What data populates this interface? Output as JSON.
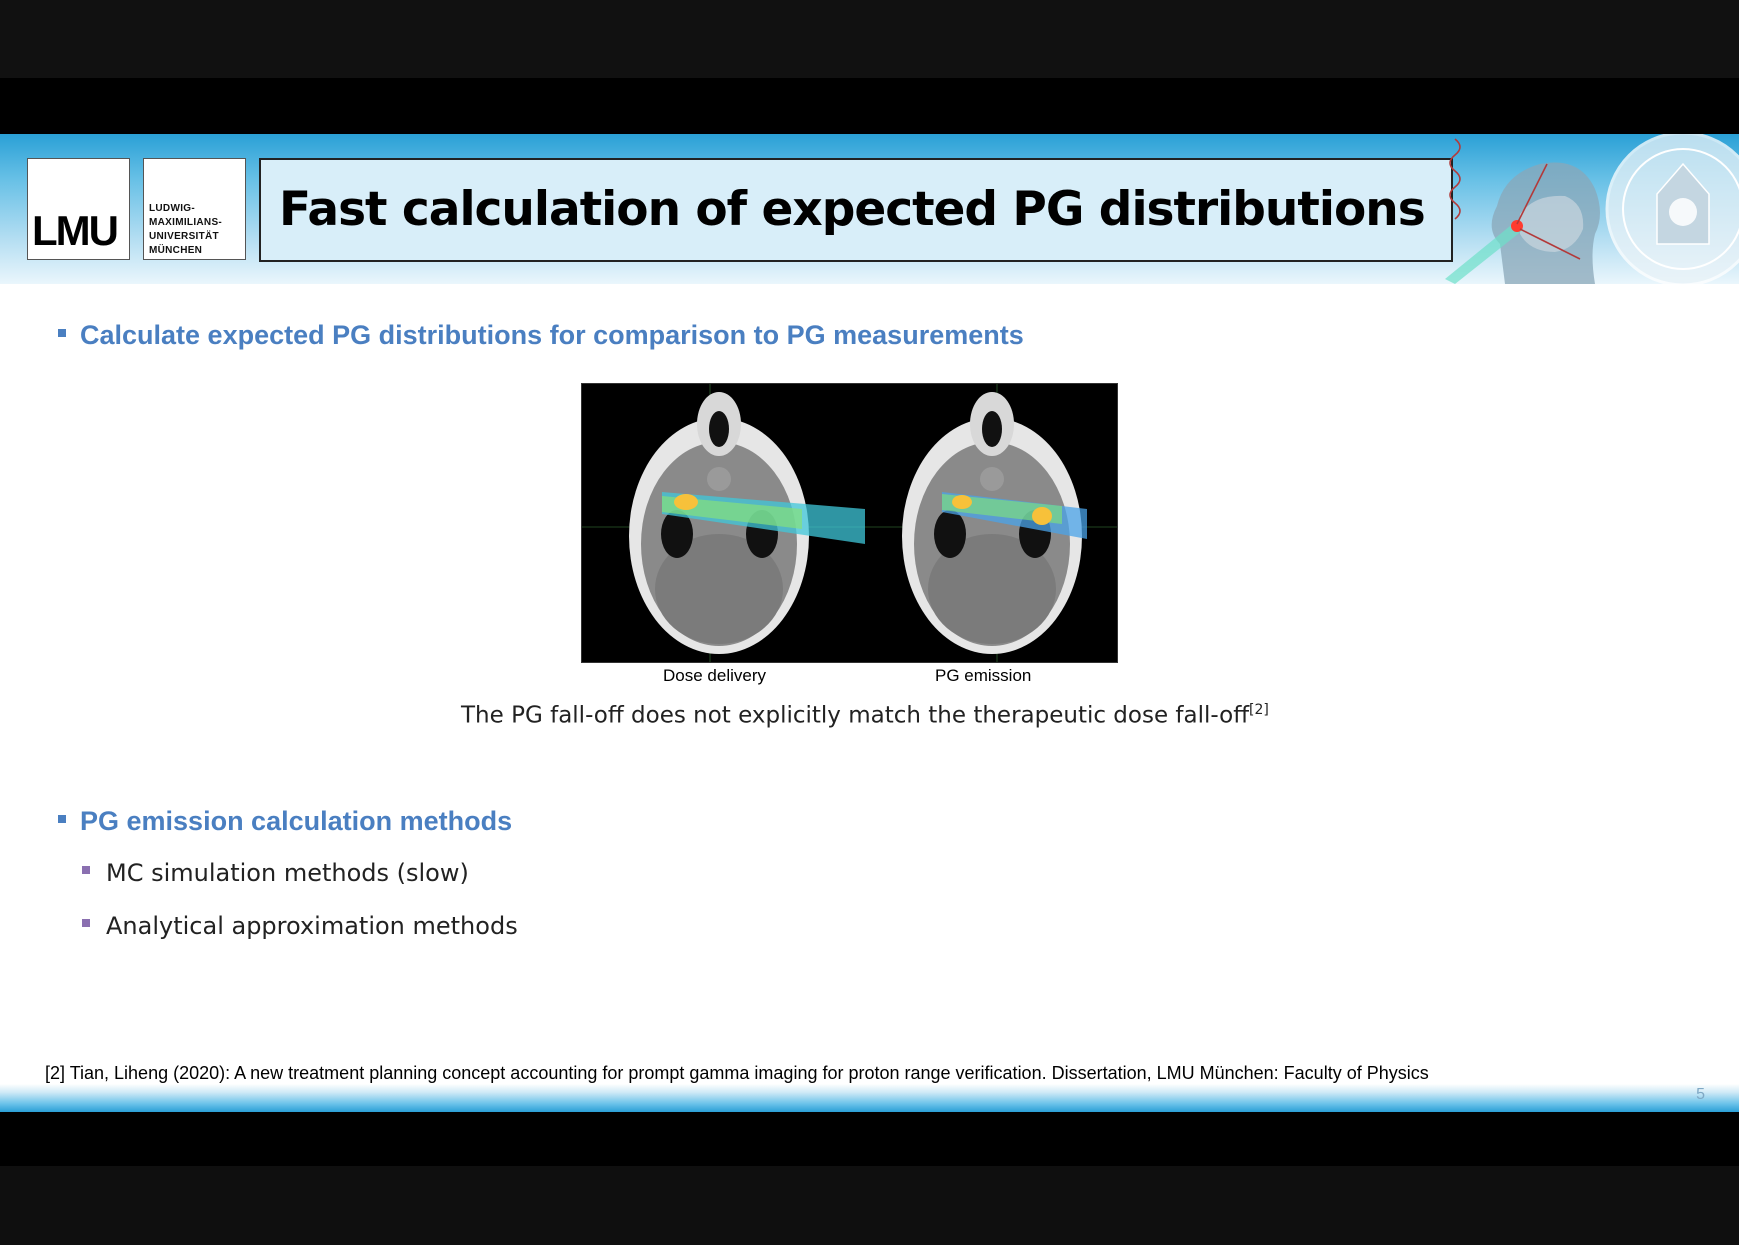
{
  "header": {
    "logo": "LMU",
    "university_lines": [
      "LUDWIG-",
      "MAXIMILIANS-",
      "UNIVERSITÄT",
      "MÜNCHEN"
    ],
    "title": "Fast calculation of expected PG distributions"
  },
  "content": {
    "bullet1": "Calculate expected PG distributions for comparison to PG measurements",
    "figure_captions": [
      "Dose delivery",
      "PG emission"
    ],
    "note_text": "The PG fall-off does not explicitly match the therapeutic dose fall-off",
    "note_ref": "[2]",
    "bullet2": "PG emission calculation methods",
    "sub_items": [
      "MC simulation methods (slow)",
      "Analytical approximation methods"
    ]
  },
  "footer": {
    "reference": "[2] Tian, Liheng (2020): A new treatment planning concept accounting for prompt gamma imaging for proton range verification. Dissertation, LMU München: Faculty of Physics",
    "page_number": "5"
  },
  "colors": {
    "accent_blue": "#4a7fc1",
    "sub_bullet_purple": "#8a6fb0",
    "header_blue": "#2aa0d6"
  }
}
